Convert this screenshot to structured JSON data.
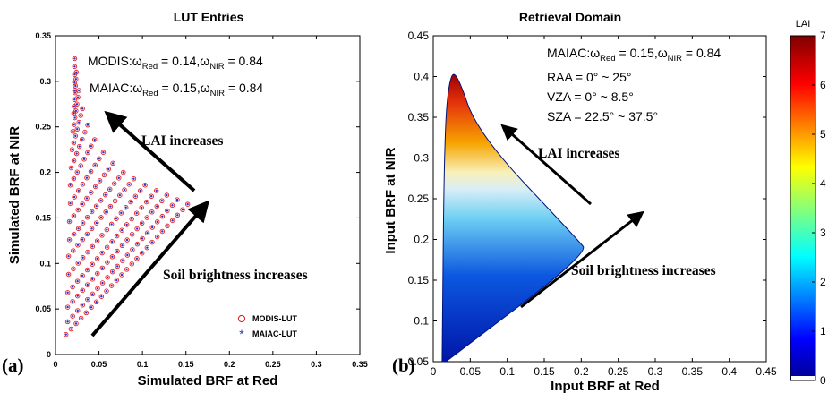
{
  "chart_data": [
    {
      "panel_label": "(a)",
      "type": "scatter",
      "title": "LUT Entries",
      "xlabel": "Simulated BRF at Red",
      "ylabel": "Simulated BRF at NIR",
      "xlim": [
        0,
        0.35
      ],
      "ylim": [
        0,
        0.35
      ],
      "xticks": [
        "0",
        "0.05",
        "0.1",
        "0.15",
        "0.2",
        "0.25",
        "0.3",
        "0.35"
      ],
      "yticks": [
        "0",
        "0.05",
        "0.1",
        "0.15",
        "0.2",
        "0.25",
        "0.3",
        "0.35"
      ],
      "grid": false,
      "legend_placement": "bottom-right",
      "series": [
        {
          "name": "MODIS-LUT",
          "marker": "circle",
          "color": "#e8202a"
        },
        {
          "name": "MAIAC-LUT",
          "marker": "asterisk",
          "color": "#2a33c8"
        }
      ],
      "lut_lines": [
        {
          "start": [
            0.012,
            0.022
          ],
          "end": [
            0.152,
            0.165
          ]
        },
        {
          "start": [
            0.014,
            0.036
          ],
          "end": [
            0.14,
            0.17
          ]
        },
        {
          "start": [
            0.014,
            0.052
          ],
          "end": [
            0.128,
            0.175
          ]
        },
        {
          "start": [
            0.014,
            0.068
          ],
          "end": [
            0.116,
            0.18
          ]
        },
        {
          "start": [
            0.015,
            0.088
          ],
          "end": [
            0.103,
            0.186
          ]
        },
        {
          "start": [
            0.015,
            0.108
          ],
          "end": [
            0.09,
            0.193
          ]
        },
        {
          "start": [
            0.016,
            0.126
          ],
          "end": [
            0.078,
            0.2
          ]
        },
        {
          "start": [
            0.016,
            0.146
          ],
          "end": [
            0.066,
            0.21
          ]
        },
        {
          "start": [
            0.017,
            0.166
          ],
          "end": [
            0.055,
            0.222
          ]
        },
        {
          "start": [
            0.017,
            0.186
          ],
          "end": [
            0.045,
            0.236
          ]
        },
        {
          "start": [
            0.018,
            0.205
          ],
          "end": [
            0.037,
            0.252
          ]
        },
        {
          "start": [
            0.019,
            0.225
          ],
          "end": [
            0.031,
            0.27
          ]
        },
        {
          "start": [
            0.02,
            0.245
          ],
          "end": [
            0.027,
            0.29
          ]
        },
        {
          "start": [
            0.021,
            0.265
          ],
          "end": [
            0.024,
            0.31
          ]
        },
        {
          "start": [
            0.022,
            0.29
          ],
          "end": [
            0.022,
            0.325
          ]
        }
      ],
      "annotations": {
        "modis_prefix": "MODIS:ω",
        "modis_red_sub": "Red",
        "modis_mid": " = 0.14,ω",
        "modis_nir_sub": "NIR",
        "modis_end": " = 0.84",
        "maiac_prefix": "MAIAC:ω",
        "maiac_red_sub": "Red",
        "maiac_mid": " = 0.15,ω",
        "maiac_nir_sub": "NIR",
        "maiac_end": " = 0.84",
        "lai_arrow": "LAI increases",
        "soil_arrow": "Soil brightness increases"
      }
    },
    {
      "panel_label": "(b)",
      "type": "heatmap",
      "title": "Retrieval Domain",
      "xlabel": "Input BRF at Red",
      "ylabel": "Input BRF at NIR",
      "xlim": [
        0,
        0.45
      ],
      "ylim": [
        0.05,
        0.45
      ],
      "xticks": [
        "0",
        "0.05",
        "0.1",
        "0.15",
        "0.2",
        "0.25",
        "0.3",
        "0.35",
        "0.4",
        "0.45"
      ],
      "yticks": [
        "0.05",
        "0.1",
        "0.15",
        "0.2",
        "0.25",
        "0.3",
        "0.35",
        "0.4",
        "0.45"
      ],
      "grid": false,
      "domain_outline": [
        [
          0.017,
          0.05
        ],
        [
          0.21,
          0.183
        ],
        [
          0.195,
          0.2
        ],
        [
          0.06,
          0.33
        ],
        [
          0.032,
          0.405
        ],
        [
          0.022,
          0.4
        ],
        [
          0.015,
          0.33
        ],
        [
          0.012,
          0.05
        ]
      ],
      "colorbar": {
        "label": "LAI",
        "min": 0,
        "max": 7,
        "ticks": [
          "0",
          "1",
          "2",
          "3",
          "4",
          "5",
          "6",
          "7"
        ],
        "colormap": "jet"
      },
      "annotations": {
        "maiac_prefix": "MAIAC:ω",
        "maiac_red_sub": "Red",
        "maiac_mid": " = 0.15,ω",
        "maiac_nir_sub": "NIR",
        "maiac_end": " = 0.84",
        "raa": "RAA =  0° ~ 25°",
        "vza": "VZA =  0° ~ 8.5°",
        "sza": "SZA =  22.5° ~ 37.5°",
        "lai_arrow": "LAI increases",
        "soil_arrow": "Soil brightness increases"
      }
    }
  ]
}
